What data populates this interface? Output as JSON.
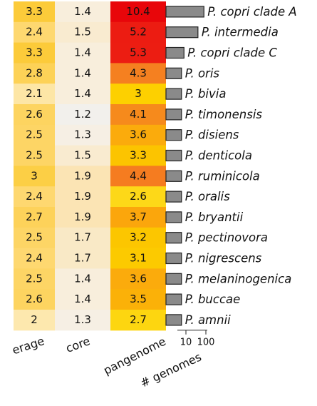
{
  "chart_data": {
    "type": "heatmap",
    "categories": [
      "P. copri clade A",
      "P. intermedia",
      "P. copri clade C",
      "P. oris",
      "P. bivia",
      "P. timonensis",
      "P. disiens",
      "P. denticola",
      "P. ruminicola",
      "P. oralis",
      "P. bryantii",
      "P. pectinovora",
      "P. nigrescens",
      "P. melaninogenica",
      "P. buccae",
      "P. amnii"
    ],
    "series": [
      {
        "name": "erage",
        "values": [
          3.3,
          2.4,
          3.3,
          2.8,
          2.1,
          2.6,
          2.5,
          2.5,
          3.0,
          2.4,
          2.7,
          2.5,
          2.4,
          2.5,
          2.6,
          2.0
        ],
        "colors": [
          "#fccb3a",
          "#fed870",
          "#fccb3a",
          "#fdd257",
          "#fde6a6",
          "#fdd460",
          "#fdd565",
          "#fdd565",
          "#fccf45",
          "#fed870",
          "#fdd25a",
          "#fdd565",
          "#fed870",
          "#fdd565",
          "#fdd460",
          "#fde8ae"
        ]
      },
      {
        "name": "core",
        "values": [
          1.4,
          1.5,
          1.4,
          1.4,
          1.4,
          1.2,
          1.3,
          1.5,
          1.9,
          1.9,
          1.9,
          1.7,
          1.7,
          1.4,
          1.4,
          1.3
        ],
        "colors": [
          "#f8eedc",
          "#f9ebd0",
          "#f8eedc",
          "#f8eedc",
          "#f8eedc",
          "#f2f0ec",
          "#f6efe4",
          "#f9ebd0",
          "#fbe4b4",
          "#fbe4b4",
          "#fbe4b4",
          "#f9e9c6",
          "#f9e9c6",
          "#f8eedc",
          "#f8eedc",
          "#f6efe4"
        ]
      },
      {
        "name": "pangenome",
        "values": [
          10.4,
          5.2,
          5.3,
          4.3,
          3.0,
          4.1,
          3.6,
          3.3,
          4.4,
          2.6,
          3.7,
          3.2,
          3.1,
          3.6,
          3.5,
          2.7
        ],
        "colors": [
          "#e8060a",
          "#ec1c12",
          "#ec1d12",
          "#f58020",
          "#fdd000",
          "#f68a1c",
          "#fbab0c",
          "#fcc400",
          "#f57c20",
          "#fdd818",
          "#fba60c",
          "#fcc600",
          "#fcca00",
          "#fbab0c",
          "#fbb108",
          "#fdd610"
        ]
      }
    ],
    "bars": {
      "name": "# genomes",
      "color": "#8a8a8a",
      "values": [
        80,
        40,
        8,
        6,
        6,
        6,
        6,
        6,
        6,
        6,
        6,
        6,
        6,
        6,
        6,
        6
      ],
      "log_scale": true,
      "xlim": [
        1,
        1000
      ],
      "xticks": [
        10,
        100
      ]
    }
  }
}
